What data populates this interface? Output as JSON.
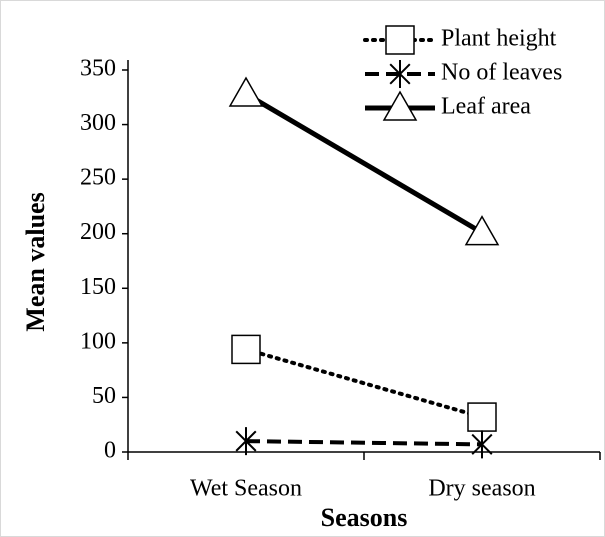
{
  "chart_data": {
    "type": "line",
    "xlabel": "Seasons",
    "ylabel": "Mean values",
    "categories": [
      "Wet Season",
      "Dry season"
    ],
    "series": [
      {
        "name": "Plant height",
        "color": "#000000",
        "line_style": "dotted",
        "marker": "square",
        "values": [
          94,
          32
        ]
      },
      {
        "name": "No of leaves",
        "color": "#000000",
        "line_style": "dashed",
        "marker": "asterisk",
        "values": [
          10,
          7
        ]
      },
      {
        "name": "Leaf area",
        "color": "#000000",
        "line_style": "solid",
        "marker": "triangle",
        "values": [
          328,
          201
        ]
      }
    ],
    "ylim": [
      0,
      350
    ],
    "yticks": [
      0,
      50,
      100,
      150,
      200,
      250,
      300,
      350
    ],
    "grid": false,
    "legend": "top-right"
  }
}
